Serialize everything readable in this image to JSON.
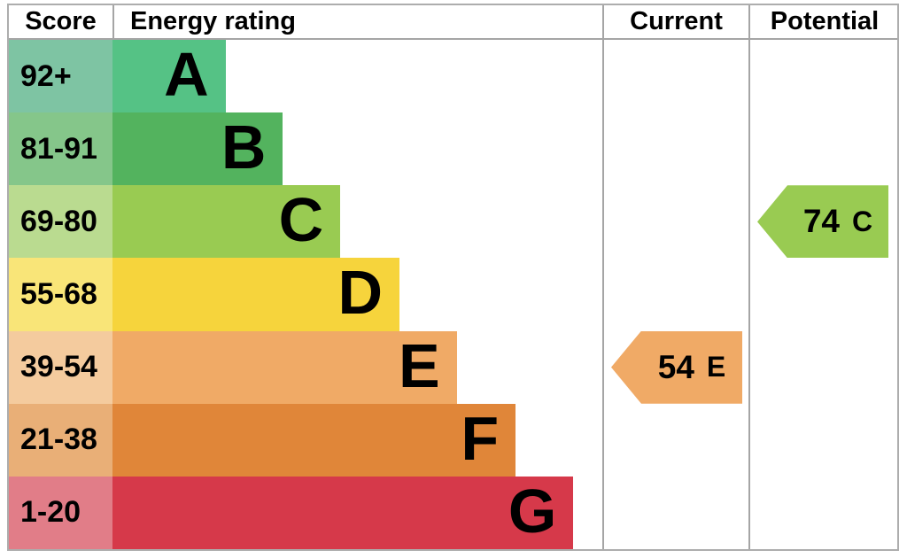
{
  "chart_data": {
    "type": "bar",
    "subtype": "energy-performance-certificate-rating",
    "orientation": "horizontal",
    "columns": {
      "score": "Score",
      "energy_rating": "Energy rating",
      "current": "Current",
      "potential": "Potential"
    },
    "bands": [
      {
        "letter": "A",
        "score_range": "92+",
        "bar_color": "#55c285",
        "score_cell_color": "#7ec4a3",
        "bar_width_pct": 23.1
      },
      {
        "letter": "B",
        "score_range": "81-91",
        "bar_color": "#53b35e",
        "score_cell_color": "#85c68a",
        "bar_width_pct": 34.8
      },
      {
        "letter": "C",
        "score_range": "69-80",
        "bar_color": "#99cb52",
        "score_cell_color": "#badb90",
        "bar_width_pct": 46.5
      },
      {
        "letter": "D",
        "score_range": "55-68",
        "bar_color": "#f6d43c",
        "score_cell_color": "#f9e578",
        "bar_width_pct": 58.6
      },
      {
        "letter": "E",
        "score_range": "39-54",
        "bar_color": "#f0aa66",
        "score_cell_color": "#f4cb9e",
        "bar_width_pct": 70.3
      },
      {
        "letter": "F",
        "score_range": "21-38",
        "bar_color": "#e08639",
        "score_cell_color": "#e9af77",
        "bar_width_pct": 82.3
      },
      {
        "letter": "G",
        "score_range": "1-20",
        "bar_color": "#d6394a",
        "score_cell_color": "#e17d88",
        "bar_width_pct": 94.1
      }
    ],
    "current": {
      "value": "54",
      "letter": "E",
      "arrow_color": "#f0aa66",
      "band": "E"
    },
    "potential": {
      "value": "74",
      "letter": "C",
      "arrow_color": "#99cb52",
      "band": "C"
    }
  },
  "colors": {
    "border": "#adadad",
    "background": "#ffffff",
    "text": "#000000"
  }
}
